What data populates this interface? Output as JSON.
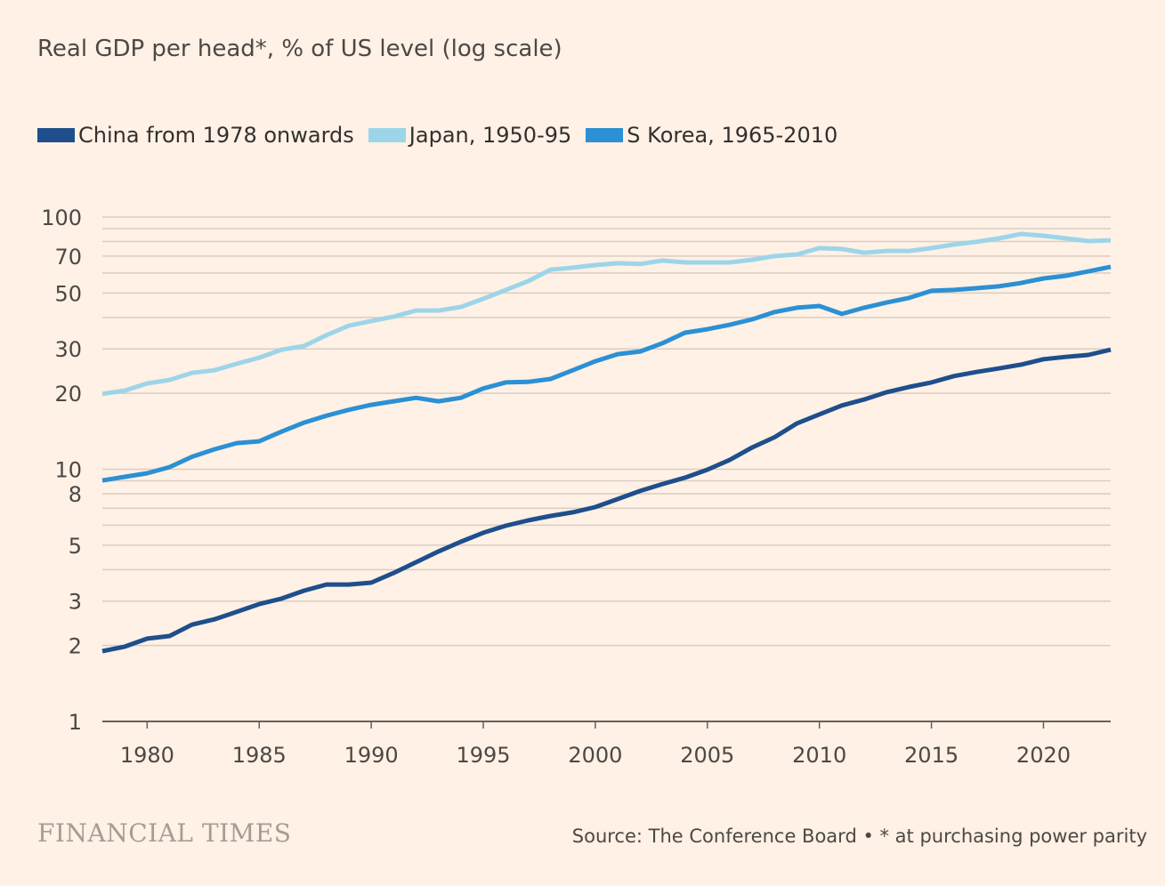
{
  "title": "Real GDP per head*, % of US level (log scale)",
  "brand": "FINANCIAL TIMES",
  "source": "Source: The Conference Board • * at purchasing power parity",
  "chart_data": {
    "type": "line",
    "title": "Real GDP per head*, % of US level (log scale)",
    "xlabel": "",
    "ylabel": "% of US level",
    "yscale": "log",
    "ylim": [
      1,
      100
    ],
    "xlim": [
      1978,
      2023
    ],
    "grid": true,
    "legend_position": "top-left",
    "y_ticks": [
      1,
      2,
      3,
      5,
      8,
      10,
      20,
      30,
      50,
      70,
      100
    ],
    "y_gridlines": [
      1,
      2,
      3,
      4,
      5,
      6,
      7,
      8,
      9,
      10,
      20,
      30,
      40,
      50,
      60,
      70,
      80,
      90,
      100
    ],
    "x_ticks": [
      1980,
      1985,
      1990,
      1995,
      2000,
      2005,
      2010,
      2015,
      2020
    ],
    "x": [
      1978,
      1979,
      1980,
      1981,
      1982,
      1983,
      1984,
      1985,
      1986,
      1987,
      1988,
      1989,
      1990,
      1991,
      1992,
      1993,
      1994,
      1995,
      1996,
      1997,
      1998,
      1999,
      2000,
      2001,
      2002,
      2003,
      2004,
      2005,
      2006,
      2007,
      2008,
      2009,
      2010,
      2011,
      2012,
      2013,
      2014,
      2015,
      2016,
      2017,
      2018,
      2019,
      2020,
      2021,
      2022,
      2023
    ],
    "series": [
      {
        "name": "China from 1978 onwards",
        "color": "#1e4f8c",
        "values": [
          1.9,
          1.98,
          2.13,
          2.18,
          2.42,
          2.54,
          2.72,
          2.92,
          3.07,
          3.3,
          3.49,
          3.49,
          3.55,
          3.88,
          4.28,
          4.72,
          5.16,
          5.6,
          5.97,
          6.27,
          6.53,
          6.75,
          7.08,
          7.62,
          8.2,
          8.74,
          9.26,
          9.96,
          10.9,
          12.2,
          13.4,
          15.2,
          16.5,
          17.9,
          18.9,
          20.2,
          21.2,
          22.1,
          23.4,
          24.3,
          25.1,
          26.0,
          27.3,
          27.9,
          28.4,
          29.8
        ]
      },
      {
        "name": "Japan, 1950-95",
        "color": "#9dd5e8",
        "values": [
          19.9,
          20.5,
          21.9,
          22.6,
          24.1,
          24.7,
          26.2,
          27.7,
          29.8,
          30.8,
          34.0,
          37.1,
          38.7,
          40.3,
          42.6,
          42.6,
          44.0,
          47.4,
          51.4,
          55.7,
          61.9,
          63.0,
          64.5,
          65.6,
          65.1,
          67.2,
          66.1,
          66.1,
          66.1,
          67.7,
          70.0,
          71.1,
          75.3,
          74.7,
          72.2,
          73.4,
          73.4,
          75.3,
          77.8,
          79.7,
          82.3,
          85.7,
          84.3,
          82.3,
          80.3,
          80.9
        ]
      },
      {
        "name": "S Korea, 1965-2010",
        "color": "#2b90d4",
        "values": [
          9.03,
          9.33,
          9.64,
          10.2,
          11.2,
          12.0,
          12.7,
          12.9,
          14.1,
          15.3,
          16.3,
          17.2,
          18.0,
          18.6,
          19.2,
          18.6,
          19.2,
          20.9,
          22.1,
          22.2,
          22.8,
          24.7,
          26.8,
          28.6,
          29.3,
          31.6,
          34.8,
          35.9,
          37.4,
          39.3,
          42.0,
          43.7,
          44.4,
          41.3,
          43.7,
          45.8,
          47.8,
          51.0,
          51.4,
          52.2,
          53.1,
          54.8,
          57.1,
          58.5,
          60.9,
          63.5
        ]
      }
    ]
  }
}
